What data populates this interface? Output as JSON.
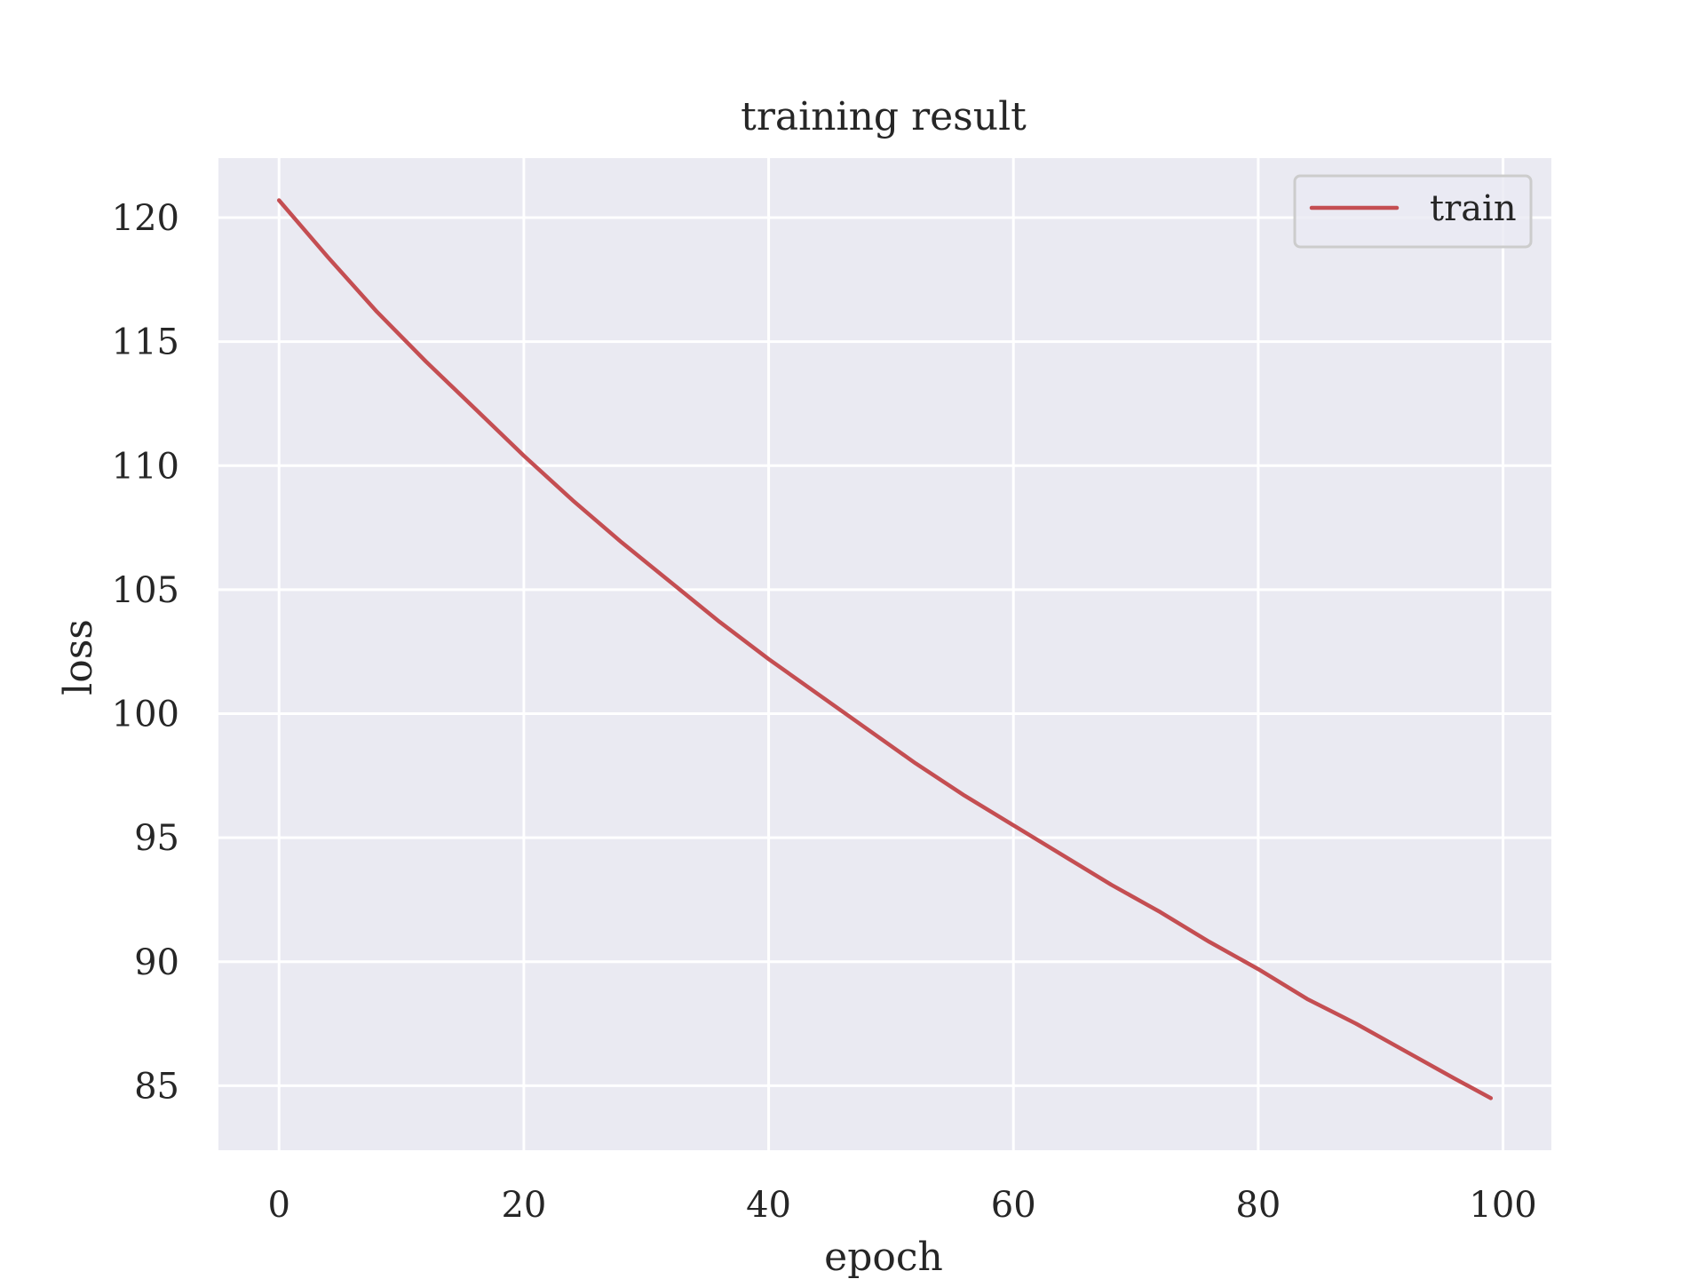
{
  "chart_data": {
    "type": "line",
    "title": "training result",
    "xlabel": "epoch",
    "ylabel": "loss",
    "xlim": [
      -4.95,
      103.95
    ],
    "ylim": [
      82.4,
      122.4
    ],
    "xticks": [
      0,
      20,
      40,
      60,
      80,
      100
    ],
    "yticks": [
      85,
      90,
      95,
      100,
      105,
      110,
      115,
      120
    ],
    "grid": true,
    "legend": {
      "position": "top-right",
      "entries": [
        "train"
      ]
    },
    "colors": {
      "background": "#eaeaf2",
      "grid": "#ffffff",
      "series": [
        "#c44e52"
      ]
    },
    "series": [
      {
        "name": "train",
        "x": [
          0,
          4,
          8,
          12,
          16,
          20,
          24,
          28,
          32,
          36,
          40,
          44,
          48,
          52,
          56,
          60,
          64,
          68,
          72,
          76,
          80,
          84,
          88,
          92,
          96,
          99
        ],
        "y": [
          120.7,
          118.4,
          116.2,
          114.2,
          112.3,
          110.4,
          108.6,
          106.9,
          105.3,
          103.7,
          102.2,
          100.8,
          99.4,
          98.0,
          96.7,
          95.5,
          94.3,
          93.1,
          92.0,
          90.8,
          89.7,
          88.5,
          87.5,
          86.4,
          85.3,
          84.5
        ]
      }
    ]
  }
}
